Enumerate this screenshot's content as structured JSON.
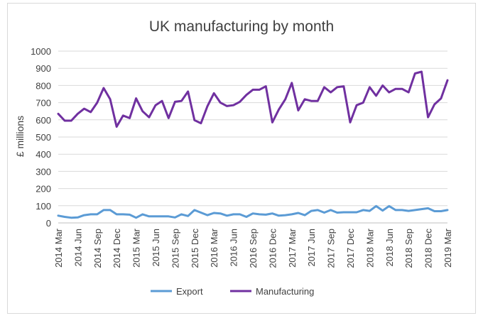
{
  "chart_data": {
    "type": "line",
    "title": "UK manufacturing by month",
    "xlabel": "",
    "ylabel": "£ millions",
    "ylim": [
      0,
      1000
    ],
    "yticks": [
      0,
      100,
      200,
      300,
      400,
      500,
      600,
      700,
      800,
      900,
      1000
    ],
    "grid": true,
    "legend_position": "bottom",
    "categories": [
      "2014 Mar",
      "2014 Apr",
      "2014 May",
      "2014 Jun",
      "2014 Jul",
      "2014 Aug",
      "2014 Sep",
      "2014 Oct",
      "2014 Nov",
      "2014 Dec",
      "2015 Jan",
      "2015 Feb",
      "2015 Mar",
      "2015 Apr",
      "2015 May",
      "2015 Jun",
      "2015 Jul",
      "2015 Aug",
      "2015 Sep",
      "2015 Oct",
      "2015 Nov",
      "2015 Dec",
      "2016 Jan",
      "2016 Feb",
      "2016 Mar",
      "2016 Apr",
      "2016 May",
      "2016 Jun",
      "2016 Jul",
      "2016 Aug",
      "2016 Sep",
      "2016 Oct",
      "2016 Nov",
      "2016 Dec",
      "2017 Jan",
      "2017 Feb",
      "2017 Mar",
      "2017 Apr",
      "2017 May",
      "2017 Jun",
      "2017 Jul",
      "2017 Aug",
      "2017 Sep",
      "2017 Oct",
      "2017 Nov",
      "2017 Dec",
      "2018 Jan",
      "2018 Feb",
      "2018 Mar",
      "2018 Apr",
      "2018 May",
      "2018 Jun",
      "2018 Jul",
      "2018 Aug",
      "2018 Sep",
      "2018 Oct",
      "2018 Nov",
      "2018 Dec",
      "2019 Jan",
      "2019 Feb",
      "2019 Mar"
    ],
    "tick_labels": [
      "2014 Mar",
      "2014 Jun",
      "2014 Sep",
      "2014 Dec",
      "2015 Mar",
      "2015 Jun",
      "2015 Sep",
      "2015 Dec",
      "2016 Mar",
      "2016 Jun",
      "2016 Sep",
      "2016 Dec",
      "2017 Mar",
      "2017 Jun",
      "2017 Sep",
      "2017 Dec",
      "2018 Mar",
      "2018 Jun",
      "2018 Sep",
      "2018 Dec",
      "2019 Mar"
    ],
    "series": [
      {
        "name": "Export",
        "color": "#5b9bd5",
        "values": [
          42,
          35,
          30,
          32,
          45,
          50,
          50,
          75,
          75,
          50,
          50,
          48,
          30,
          50,
          38,
          38,
          38,
          38,
          32,
          50,
          40,
          75,
          60,
          45,
          58,
          55,
          42,
          50,
          50,
          35,
          55,
          50,
          48,
          55,
          42,
          45,
          50,
          58,
          45,
          70,
          75,
          60,
          75,
          60,
          62,
          62,
          62,
          75,
          70,
          98,
          72,
          98,
          75,
          75,
          70,
          75,
          80,
          85,
          68,
          68,
          75
        ]
      },
      {
        "name": "Manufacturing",
        "color": "#7030a0",
        "values": [
          635,
          595,
          595,
          635,
          665,
          645,
          700,
          785,
          720,
          560,
          625,
          610,
          725,
          650,
          615,
          685,
          710,
          610,
          705,
          710,
          765,
          598,
          580,
          680,
          755,
          700,
          680,
          685,
          705,
          745,
          775,
          775,
          795,
          585,
          660,
          720,
          815,
          655,
          720,
          710,
          710,
          790,
          760,
          790,
          795,
          585,
          685,
          700,
          790,
          740,
          800,
          760,
          780,
          780,
          760,
          870,
          880,
          615,
          690,
          725,
          830
        ]
      }
    ]
  }
}
